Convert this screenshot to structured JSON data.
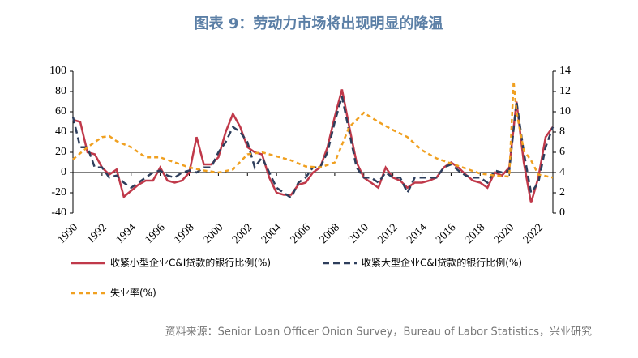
{
  "chart_data": {
    "type": "line",
    "title": "图表 9：劳动力市场将出现明显的降温",
    "source": "资料来源：Senior Loan Officer Onion Survey，Bureau of Labor Statistics，兴业研究",
    "xlim": [
      1990,
      2023
    ],
    "xticks": [
      1990,
      1992,
      1994,
      1996,
      1998,
      2000,
      2002,
      2004,
      2006,
      2008,
      2010,
      2012,
      2014,
      2016,
      2018,
      2020,
      2022
    ],
    "ylim": [
      -40,
      100
    ],
    "yticks": [
      -40,
      -20,
      0,
      20,
      40,
      60,
      80,
      100
    ],
    "y2lim": [
      0,
      14
    ],
    "y2ticks": [
      0,
      2,
      4,
      6,
      8,
      10,
      12,
      14
    ],
    "series": [
      {
        "name": "收紧小型企业C&I贷款的银行比例(%)",
        "color": "#c0394a",
        "dash": "none",
        "x": [
          1990,
          1990.5,
          1991,
          1991.5,
          1992,
          1992.5,
          1993,
          1993.5,
          1994,
          1994.5,
          1995,
          1995.5,
          1996,
          1996.5,
          1997,
          1997.5,
          1998,
          1998.5,
          1999,
          1999.5,
          2000,
          2000.5,
          2001,
          2001.5,
          2002,
          2002.5,
          2003,
          2003.5,
          2004,
          2004.5,
          2005,
          2005.5,
          2006,
          2006.5,
          2007,
          2007.5,
          2008,
          2008.5,
          2009,
          2009.5,
          2010,
          2010.5,
          2011,
          2011.5,
          2012,
          2012.5,
          2013,
          2013.5,
          2014,
          2014.5,
          2015,
          2015.5,
          2016,
          2016.5,
          2017,
          2017.5,
          2018,
          2018.5,
          2019,
          2019.5,
          2020,
          2020.5,
          2021,
          2021.5,
          2022,
          2022.5,
          2023
        ],
        "values": [
          52,
          50,
          20,
          18,
          5,
          -2,
          3,
          -24,
          -18,
          -12,
          -8,
          -8,
          5,
          -8,
          -10,
          -8,
          0,
          35,
          8,
          8,
          15,
          40,
          58,
          45,
          25,
          20,
          18,
          -5,
          -20,
          -22,
          -22,
          -12,
          -10,
          0,
          5,
          25,
          55,
          82,
          45,
          10,
          -5,
          -10,
          -15,
          5,
          -5,
          -8,
          -15,
          -10,
          -10,
          -8,
          -5,
          5,
          10,
          5,
          -2,
          -8,
          -10,
          -15,
          0,
          -3,
          5,
          70,
          10,
          -30,
          -5,
          35,
          45
        ]
      },
      {
        "name": "收紧大型企业C&I贷款的银行比例(%)",
        "color": "#2e3e5c",
        "dash": "8 5",
        "x": [
          1990,
          1990.5,
          1991,
          1991.5,
          1992,
          1992.5,
          1993,
          1993.5,
          1994,
          1994.5,
          1995,
          1995.5,
          1996,
          1996.5,
          1997,
          1997.5,
          1998,
          1998.5,
          1999,
          1999.5,
          2000,
          2000.5,
          2001,
          2001.5,
          2002,
          2002.5,
          2003,
          2003.5,
          2004,
          2004.5,
          2005,
          2005.5,
          2006,
          2006.5,
          2007,
          2007.5,
          2008,
          2008.5,
          2009,
          2009.5,
          2010,
          2010.5,
          2011,
          2011.5,
          2012,
          2012.5,
          2013,
          2013.5,
          2014,
          2014.5,
          2015,
          2015.5,
          2016,
          2016.5,
          2017,
          2017.5,
          2018,
          2018.5,
          2019,
          2019.5,
          2020,
          2020.5,
          2021,
          2021.5,
          2022,
          2022.5,
          2023
        ],
        "values": [
          55,
          25,
          25,
          5,
          5,
          -5,
          -3,
          -10,
          -15,
          -10,
          -5,
          0,
          2,
          -3,
          -5,
          0,
          2,
          0,
          5,
          5,
          20,
          30,
          45,
          40,
          30,
          5,
          15,
          0,
          -15,
          -20,
          -25,
          -10,
          -5,
          5,
          5,
          20,
          50,
          75,
          40,
          5,
          -5,
          -5,
          -10,
          0,
          -5,
          -5,
          -20,
          -5,
          -5,
          -5,
          -5,
          5,
          8,
          2,
          -3,
          -5,
          -5,
          -10,
          2,
          0,
          2,
          70,
          20,
          -20,
          -10,
          25,
          45
        ]
      },
      {
        "name": "失业率(%)",
        "color": "#f0a020",
        "dash": "5 4",
        "axis": "y2",
        "x": [
          1990,
          1991,
          1992,
          1992.5,
          1993,
          1994,
          1995,
          1996,
          1997,
          1998,
          1999,
          2000,
          2001,
          2002,
          2003,
          2004,
          2005,
          2006,
          2007,
          2008,
          2009,
          2010,
          2011,
          2012,
          2013,
          2014,
          2015,
          2016,
          2017,
          2018,
          2019,
          2020,
          2020.3,
          2020.5,
          2021,
          2021.5,
          2022,
          2023
        ],
        "values": [
          5.3,
          6.5,
          7.5,
          7.6,
          7.1,
          6.5,
          5.5,
          5.5,
          5.0,
          4.5,
          4.2,
          4.0,
          4.3,
          5.8,
          6.0,
          5.6,
          5.2,
          4.6,
          4.5,
          5.0,
          8.5,
          9.9,
          9.0,
          8.2,
          7.5,
          6.2,
          5.4,
          4.9,
          4.4,
          3.9,
          3.7,
          3.6,
          13,
          10,
          6.2,
          5.2,
          3.8,
          3.5
        ]
      }
    ]
  }
}
